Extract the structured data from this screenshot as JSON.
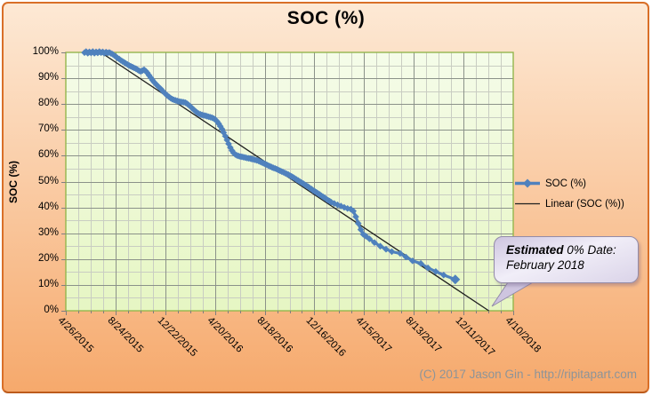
{
  "title": "SOC (%)",
  "y_axis": {
    "title": "SOC (%)"
  },
  "legend": {
    "items": [
      {
        "label": "SOC (%)",
        "marker": "blue-line-diamond"
      },
      {
        "label": "Linear (SOC (%))",
        "marker": "thin-black-line"
      }
    ]
  },
  "callout": {
    "emphasis": "Estimated",
    "line1_rest": " 0% Date:",
    "line2": "February 2018"
  },
  "footer": "(C) 2017 Jason Gin - http://ripitapart.com",
  "colors": {
    "background_top": "#FDE9D5",
    "background_bottom": "#F6A96C",
    "frame_border": "#D96F28",
    "frame_border_dark": "#BC5B1C",
    "plot_fill_top": "#F5FCE9",
    "plot_fill_bottom": "#E6F6C3",
    "plot_border": "#94B64D",
    "grid_minor": "#C9CDC2",
    "grid_major": "#8B9289",
    "tick": "#7F7F7F",
    "series_blue": "#4F81BD",
    "trend_black": "#1F1F1F",
    "callout_fill_dark": "#CEC5E0",
    "callout_fill_light": "#F1EEF8",
    "callout_border": "#938BA8",
    "footer_gray": "#8D9499"
  },
  "chart_data": {
    "type": "line",
    "title": "SOC (%)",
    "xlabel": "",
    "ylabel": "SOC (%)",
    "ylim": [
      0,
      100
    ],
    "y_major_step": 10,
    "y_minor_step": 5,
    "x_start_date": "4/26/2015",
    "x_end_date": "4/10/2018",
    "x_minor_days": 30,
    "x_major_days": 120,
    "grid": true,
    "legend_position": "right",
    "y_tick_labels": [
      "0%",
      "10%",
      "20%",
      "30%",
      "40%",
      "50%",
      "60%",
      "70%",
      "80%",
      "90%",
      "100%"
    ],
    "x_tick_labels": [
      "4/26/2015",
      "8/24/2015",
      "12/22/2015",
      "4/20/2016",
      "8/18/2016",
      "12/16/2016",
      "4/15/2017",
      "8/13/2017",
      "12/11/2017",
      "4/10/2018"
    ],
    "annotation": {
      "text": "Estimated 0% Date: February 2018",
      "points_to": "trendline zero crossing"
    },
    "series": [
      {
        "name": "SOC (%)",
        "color": "#4F81BD",
        "marker": "diamond",
        "last_point_emphasis": true,
        "points": [
          [
            "6/10/2015",
            99.9
          ],
          [
            "6/14/2015",
            100.3
          ],
          [
            "6/18/2015",
            99.7
          ],
          [
            "6/22/2015",
            100.2
          ],
          [
            "6/26/2015",
            99.8
          ],
          [
            "6/30/2015",
            100.3
          ],
          [
            "7/4/2015",
            99.7
          ],
          [
            "7/8/2015",
            100.2
          ],
          [
            "7/12/2015",
            99.8
          ],
          [
            "7/16/2015",
            100.3
          ],
          [
            "7/20/2015",
            99.9
          ],
          [
            "7/24/2015",
            100.2
          ],
          [
            "7/28/2015",
            99.7
          ],
          [
            "8/1/2015",
            100.1
          ],
          [
            "8/5/2015",
            99.8
          ],
          [
            "8/9/2015",
            100.0
          ],
          [
            "8/13/2015",
            99.6
          ],
          [
            "8/17/2015",
            99.3
          ],
          [
            "8/21/2015",
            98.8
          ],
          [
            "8/25/2015",
            98.3
          ],
          [
            "8/29/2015",
            97.8
          ],
          [
            "9/2/2015",
            97.4
          ],
          [
            "9/6/2015",
            96.9
          ],
          [
            "9/10/2015",
            96.5
          ],
          [
            "9/14/2015",
            96.1
          ],
          [
            "9/18/2015",
            95.7
          ],
          [
            "9/22/2015",
            95.3
          ],
          [
            "9/26/2015",
            94.9
          ],
          [
            "9/30/2015",
            94.6
          ],
          [
            "10/4/2015",
            94.3
          ],
          [
            "10/8/2015",
            94.0
          ],
          [
            "10/12/2015",
            93.7
          ],
          [
            "10/16/2015",
            93.3
          ],
          [
            "10/20/2015",
            92.9
          ],
          [
            "10/24/2015",
            92.6
          ],
          [
            "10/28/2015",
            93.0
          ],
          [
            "11/1/2015",
            93.3
          ],
          [
            "11/5/2015",
            92.8
          ],
          [
            "11/9/2015",
            92.0
          ],
          [
            "11/13/2015",
            91.1
          ],
          [
            "11/17/2015",
            90.2
          ],
          [
            "11/21/2015",
            89.3
          ],
          [
            "11/25/2015",
            88.5
          ],
          [
            "11/29/2015",
            87.8
          ],
          [
            "12/3/2015",
            87.1
          ],
          [
            "12/7/2015",
            86.5
          ],
          [
            "12/11/2015",
            85.9
          ],
          [
            "12/15/2015",
            85.2
          ],
          [
            "12/19/2015",
            84.5
          ],
          [
            "12/23/2015",
            83.9
          ],
          [
            "12/27/2015",
            83.3
          ],
          [
            "12/31/2015",
            82.8
          ],
          [
            "1/4/2016",
            82.3
          ],
          [
            "1/8/2016",
            81.9
          ],
          [
            "1/12/2016",
            81.6
          ],
          [
            "1/16/2016",
            81.4
          ],
          [
            "1/20/2016",
            81.2
          ],
          [
            "1/24/2016",
            81.0
          ],
          [
            "1/28/2016",
            80.9
          ],
          [
            "2/1/2016",
            80.8
          ],
          [
            "2/5/2016",
            80.7
          ],
          [
            "2/9/2016",
            80.5
          ],
          [
            "2/13/2016",
            80.1
          ],
          [
            "2/17/2016",
            79.6
          ],
          [
            "2/21/2016",
            79.0
          ],
          [
            "2/25/2016",
            78.4
          ],
          [
            "2/29/2016",
            77.8
          ],
          [
            "3/4/2016",
            77.2
          ],
          [
            "3/8/2016",
            76.7
          ],
          [
            "3/12/2016",
            76.3
          ],
          [
            "3/16/2016",
            76.0
          ],
          [
            "3/20/2016",
            75.8
          ],
          [
            "3/24/2016",
            75.6
          ],
          [
            "3/28/2016",
            75.5
          ],
          [
            "4/1/2016",
            75.3
          ],
          [
            "4/5/2016",
            75.1
          ],
          [
            "4/9/2016",
            74.9
          ],
          [
            "4/13/2016",
            74.7
          ],
          [
            "4/17/2016",
            74.4
          ],
          [
            "4/21/2016",
            74.0
          ],
          [
            "4/25/2016",
            73.3
          ],
          [
            "4/29/2016",
            72.4
          ],
          [
            "5/3/2016",
            71.4
          ],
          [
            "5/7/2016",
            70.3
          ],
          [
            "5/11/2016",
            69.0
          ],
          [
            "5/15/2016",
            67.6
          ],
          [
            "5/19/2016",
            66.1
          ],
          [
            "5/23/2016",
            64.6
          ],
          [
            "5/27/2016",
            63.2
          ],
          [
            "5/31/2016",
            62.0
          ],
          [
            "6/4/2016",
            61.1
          ],
          [
            "6/8/2016",
            60.5
          ],
          [
            "6/12/2016",
            60.1
          ],
          [
            "6/16/2016",
            59.9
          ],
          [
            "6/20/2016",
            59.7
          ],
          [
            "6/24/2016",
            59.6
          ],
          [
            "6/28/2016",
            59.4
          ],
          [
            "7/2/2016",
            59.3
          ],
          [
            "7/6/2016",
            59.1
          ],
          [
            "7/10/2016",
            59.0
          ],
          [
            "7/14/2016",
            58.9
          ],
          [
            "7/18/2016",
            58.7
          ],
          [
            "7/22/2016",
            58.6
          ],
          [
            "7/26/2016",
            58.4
          ],
          [
            "7/30/2016",
            58.2
          ],
          [
            "8/3/2016",
            58.0
          ],
          [
            "8/7/2016",
            57.7
          ],
          [
            "8/11/2016",
            57.4
          ],
          [
            "8/15/2016",
            57.1
          ],
          [
            "8/19/2016",
            56.8
          ],
          [
            "8/23/2016",
            56.5
          ],
          [
            "8/27/2016",
            56.2
          ],
          [
            "8/31/2016",
            55.9
          ],
          [
            "9/4/2016",
            55.6
          ],
          [
            "9/8/2016",
            55.3
          ],
          [
            "9/12/2016",
            55.1
          ],
          [
            "9/16/2016",
            54.8
          ],
          [
            "9/20/2016",
            54.5
          ],
          [
            "9/24/2016",
            54.2
          ],
          [
            "9/28/2016",
            53.9
          ],
          [
            "10/2/2016",
            53.6
          ],
          [
            "10/6/2016",
            53.3
          ],
          [
            "10/10/2016",
            53.0
          ],
          [
            "10/14/2016",
            52.7
          ],
          [
            "10/18/2016",
            52.3
          ],
          [
            "10/22/2016",
            52.0
          ],
          [
            "10/26/2016",
            51.6
          ],
          [
            "10/30/2016",
            51.2
          ],
          [
            "11/3/2016",
            50.8
          ],
          [
            "11/7/2016",
            50.4
          ],
          [
            "11/11/2016",
            50.0
          ],
          [
            "11/15/2016",
            49.6
          ],
          [
            "11/19/2016",
            49.2
          ],
          [
            "11/23/2016",
            48.8
          ],
          [
            "11/27/2016",
            48.4
          ],
          [
            "12/1/2016",
            48.0
          ],
          [
            "12/5/2016",
            47.5
          ],
          [
            "12/9/2016",
            47.1
          ],
          [
            "12/13/2016",
            46.6
          ],
          [
            "12/17/2016",
            46.2
          ],
          [
            "12/21/2016",
            45.8
          ],
          [
            "12/25/2016",
            45.4
          ],
          [
            "12/29/2016",
            45.0
          ],
          [
            "1/2/2017",
            44.5
          ],
          [
            "1/6/2017",
            44.1
          ],
          [
            "1/10/2017",
            43.7
          ],
          [
            "1/14/2017",
            43.2
          ],
          [
            "1/18/2017",
            42.8
          ],
          [
            "1/22/2017",
            42.4
          ],
          [
            "1/26/2017",
            42.0
          ],
          [
            "2/2/2017",
            41.5
          ],
          [
            "2/10/2017",
            41.0
          ],
          [
            "2/18/2017",
            40.5
          ],
          [
            "2/26/2017",
            40.0
          ],
          [
            "3/6/2017",
            39.6
          ],
          [
            "3/14/2017",
            39.3
          ],
          [
            "3/20/2017",
            38.6
          ],
          [
            "3/26/2017",
            36.4
          ],
          [
            "4/1/2017",
            33.8
          ],
          [
            "4/7/2017",
            31.4
          ],
          [
            "4/13/2017",
            29.6
          ],
          [
            "4/19/2017",
            28.9
          ],
          [
            "4/28/2017",
            27.8
          ],
          [
            "5/10/2017",
            26.4
          ],
          [
            "5/24/2017",
            25.0
          ],
          [
            "6/7/2017",
            23.8
          ],
          [
            "6/21/2017",
            22.9
          ],
          [
            "7/11/2017",
            22.2
          ],
          [
            "7/25/2017",
            20.8
          ],
          [
            "8/10/2017",
            19.3
          ],
          [
            "8/30/2017",
            18.3
          ],
          [
            "9/16/2017",
            16.6
          ],
          [
            "10/5/2017",
            15.2
          ],
          [
            "10/24/2017",
            13.8
          ],
          [
            "11/21/2017",
            12.1
          ]
        ]
      },
      {
        "name": "Linear (SOC (%))",
        "color": "#1F1F1F",
        "marker": "none",
        "points": [
          [
            "7/12/2015",
            100.8
          ],
          [
            "2/10/2018",
            0
          ]
        ]
      }
    ]
  }
}
